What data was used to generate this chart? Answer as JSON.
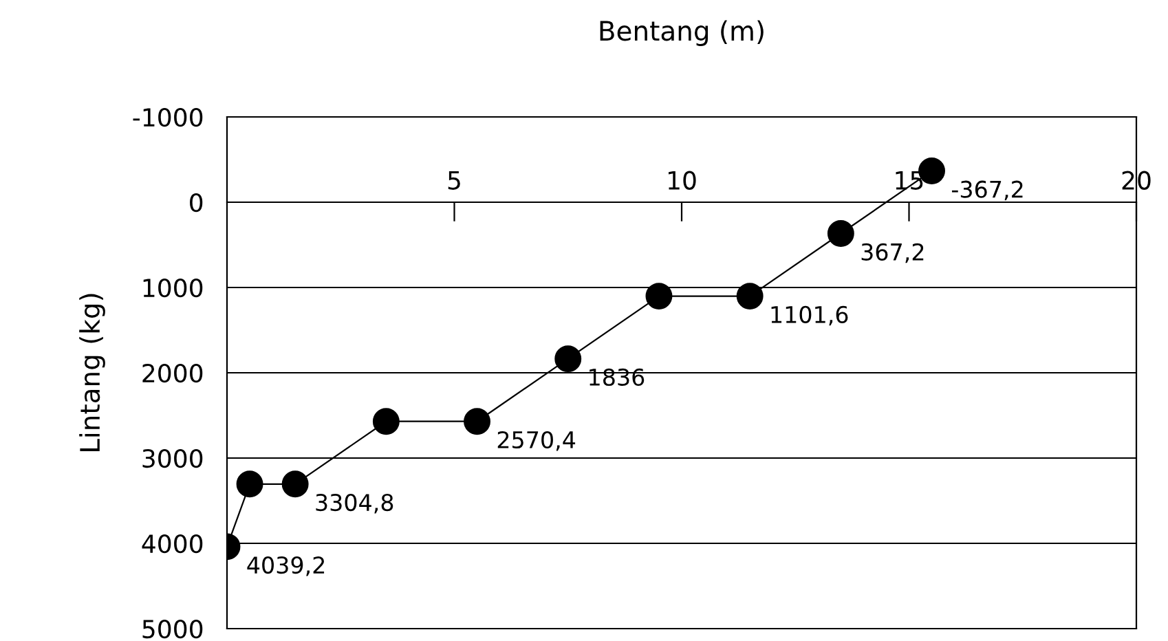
{
  "chart_data": {
    "type": "line",
    "xlabel": "Bentang (m)",
    "ylabel": "Lintang (kg)",
    "x": [
      0,
      0.5,
      1.5,
      3.5,
      5.5,
      7.5,
      9.5,
      11.5,
      13.5,
      15.5
    ],
    "series": [
      {
        "color": "#000000",
        "values": [
          4039.2,
          3304.8,
          3304.8,
          2570.4,
          2570.4,
          1836,
          1101.6,
          1101.6,
          367.2,
          -367.2
        ],
        "value_labels": [
          "4039,2",
          null,
          "3304,8",
          null,
          "2570,4",
          "1836",
          null,
          "1101,6",
          "367,2",
          "-367,2"
        ]
      }
    ],
    "xlim": [
      0,
      20
    ],
    "xticks": [
      5,
      10,
      15,
      20
    ],
    "ylim": [
      5000,
      -1000
    ],
    "yticks": [
      -1000,
      0,
      1000,
      2000,
      3000,
      4000,
      5000
    ],
    "grid": "y",
    "marker": "circle",
    "line_style": "solid"
  }
}
